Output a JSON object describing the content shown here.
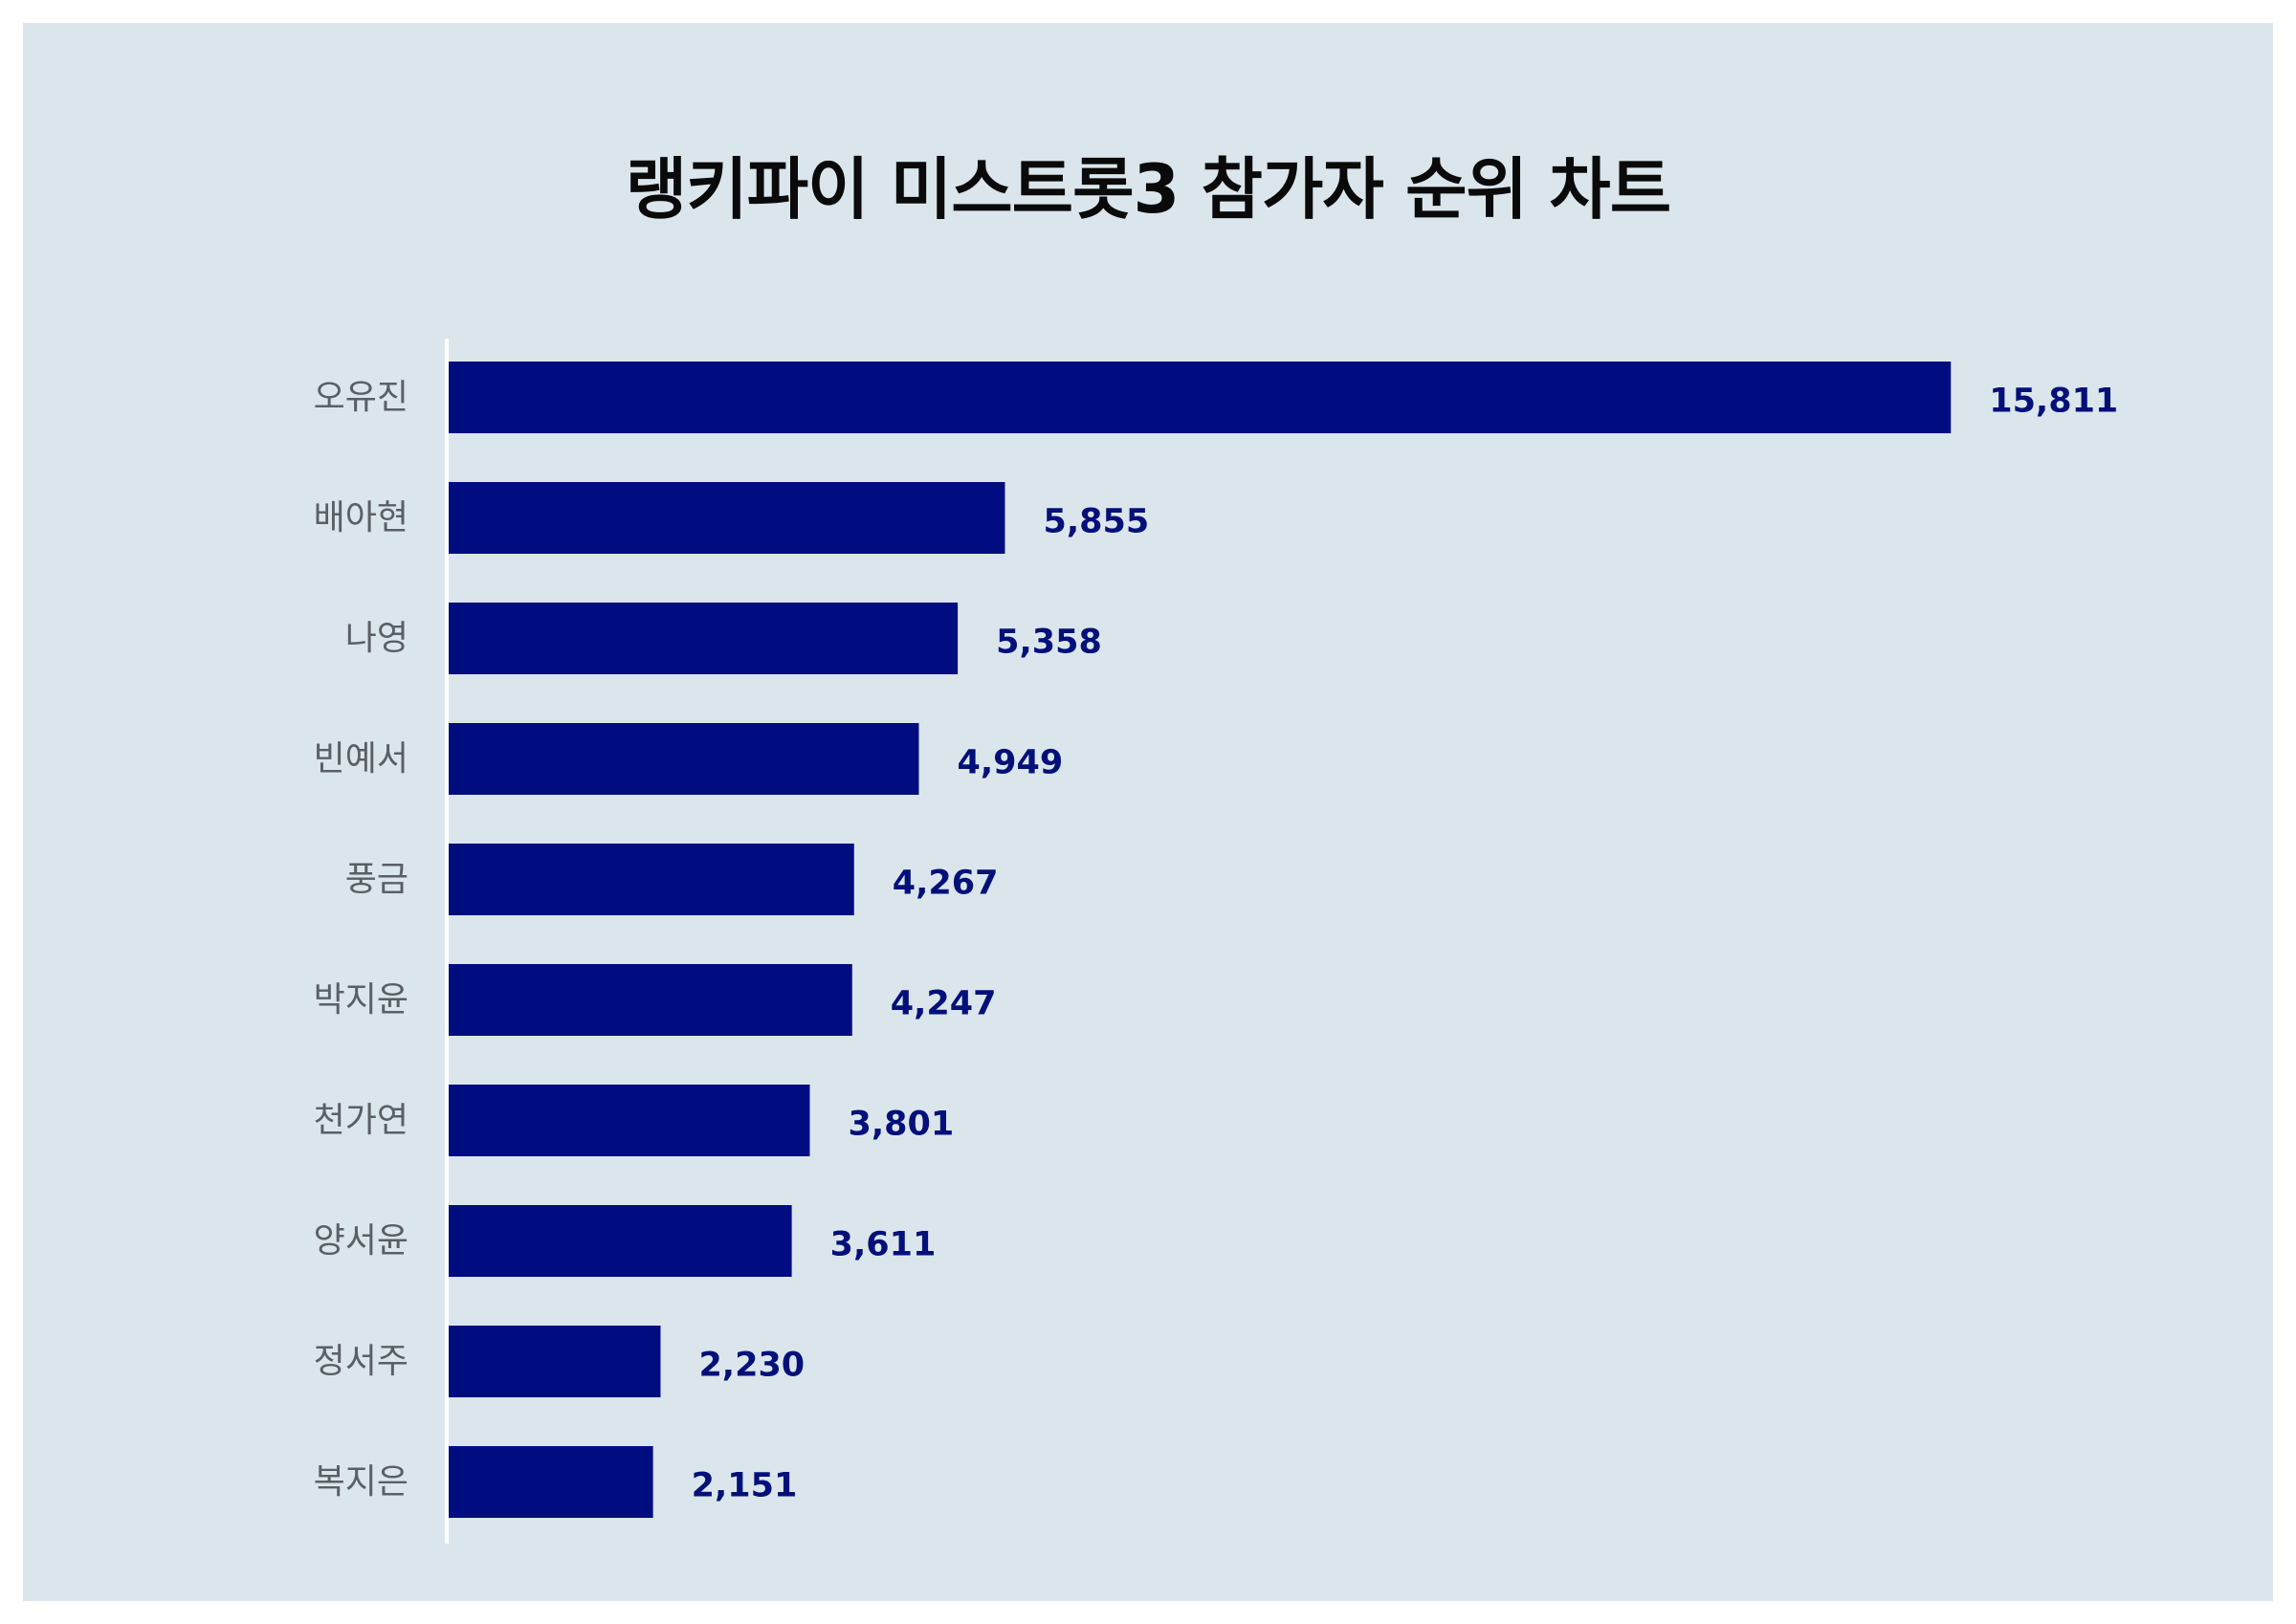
{
  "title": "랭키파이 미스트롯3 참가자 순위 차트",
  "colors": {
    "background": "#dbe6ec",
    "bar": "#000d80",
    "value_label": "#04107a",
    "axis": "#ffffff"
  },
  "chart_data": {
    "type": "bar",
    "orientation": "horizontal",
    "title": "랭키파이 미스트롯3 참가자 순위 차트",
    "xlabel": "",
    "ylabel": "",
    "xlim": [
      0,
      16000
    ],
    "grid": false,
    "legend": "none",
    "categories": [
      "오유진",
      "배아현",
      "나영",
      "빈예서",
      "풍금",
      "박지윤",
      "천가연",
      "양서윤",
      "정서주",
      "복지은"
    ],
    "values": [
      15811,
      5855,
      5358,
      4949,
      4267,
      4247,
      3801,
      3611,
      2230,
      2151
    ],
    "value_labels": [
      "15,811",
      "5,855",
      "5,358",
      "4,949",
      "4,267",
      "4,247",
      "3,801",
      "3,611",
      "2,230",
      "2,151"
    ]
  }
}
